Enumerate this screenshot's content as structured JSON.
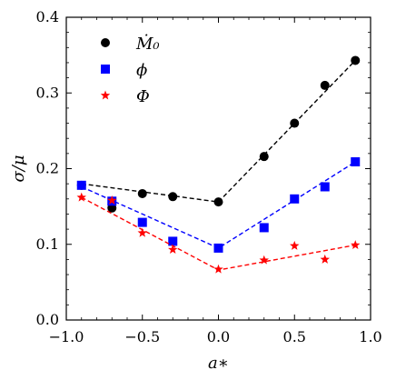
{
  "chart_data": {
    "type": "scatter",
    "xlabel": "a∗",
    "ylabel": "σ/μ",
    "xlim": [
      -1.0,
      1.0
    ],
    "ylim": [
      0.0,
      0.4
    ],
    "xticks": [
      -1.0,
      -0.5,
      0.0,
      0.5,
      1.0
    ],
    "xtick_labels": [
      "−1.0",
      "−0.5",
      "0.0",
      "0.5",
      "1.0"
    ],
    "yticks": [
      0.0,
      0.1,
      0.2,
      0.3,
      0.4
    ],
    "ytick_labels": [
      "0.0",
      "0.1",
      "0.2",
      "0.3",
      "0.4"
    ],
    "grid": false,
    "legend_position": "top-left",
    "series": [
      {
        "name": "Ṁ₀",
        "marker": "circle",
        "color": "#000000",
        "x": [
          -0.9,
          -0.7,
          -0.5,
          -0.3,
          0.0,
          0.3,
          0.5,
          0.7,
          0.9
        ],
        "y": [
          0.178,
          0.148,
          0.167,
          0.163,
          0.156,
          0.216,
          0.26,
          0.31,
          0.343
        ],
        "fit_x": [
          -0.9,
          0.0,
          0.9
        ],
        "fit_y": [
          0.18,
          0.156,
          0.343
        ]
      },
      {
        "name": "ϕ",
        "marker": "square",
        "color": "#0000ff",
        "x": [
          -0.9,
          -0.7,
          -0.5,
          -0.3,
          0.0,
          0.3,
          0.5,
          0.7,
          0.9
        ],
        "y": [
          0.178,
          0.157,
          0.129,
          0.104,
          0.095,
          0.122,
          0.16,
          0.176,
          0.209
        ],
        "fit_x": [
          -0.9,
          0.0,
          0.9
        ],
        "fit_y": [
          0.176,
          0.095,
          0.209
        ]
      },
      {
        "name": "Φ",
        "marker": "star",
        "color": "#ff0000",
        "x": [
          -0.9,
          -0.7,
          -0.5,
          -0.3,
          0.0,
          0.3,
          0.5,
          0.7,
          0.9
        ],
        "y": [
          0.162,
          0.158,
          0.115,
          0.093,
          0.067,
          0.079,
          0.098,
          0.08,
          0.099
        ],
        "fit_x": [
          -0.9,
          0.0,
          0.9
        ],
        "fit_y": [
          0.162,
          0.066,
          0.099
        ]
      }
    ]
  }
}
